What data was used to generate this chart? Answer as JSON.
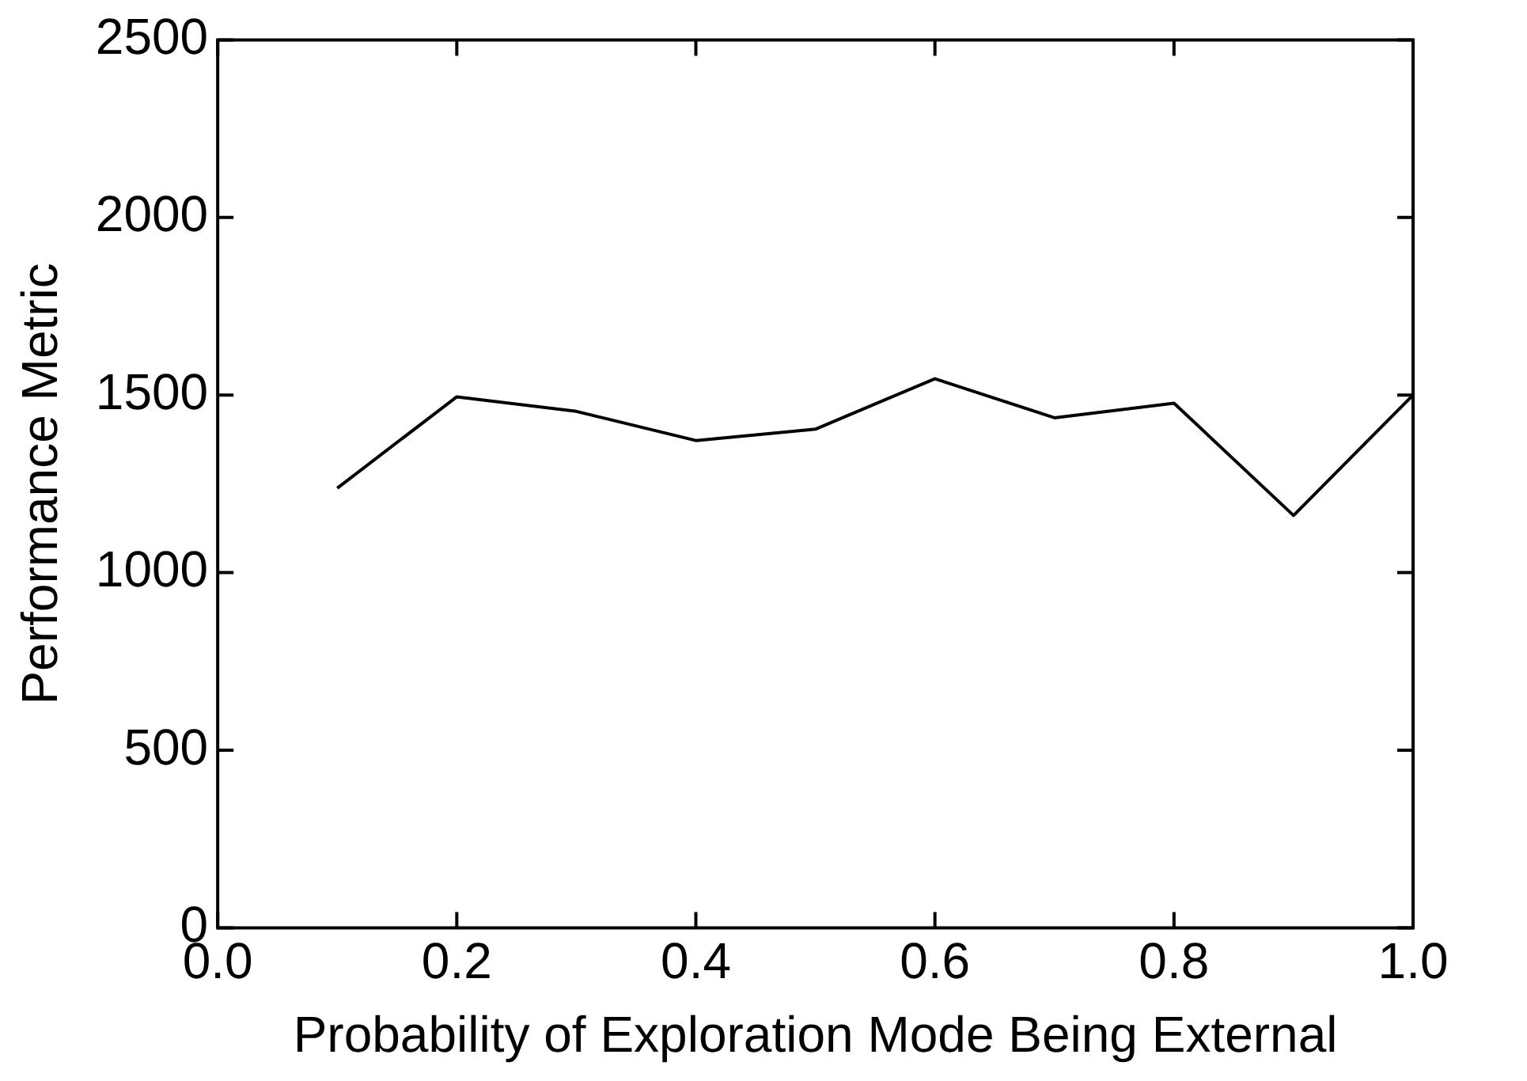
{
  "chart_data": {
    "type": "line",
    "xlabel": "Probability of Exploration Mode Being External",
    "ylabel": "Performance Metric",
    "x": [
      0.1,
      0.2,
      0.3,
      0.4,
      0.5,
      0.6,
      0.7,
      0.8,
      0.9,
      1.0
    ],
    "series": [
      {
        "color": "#000000",
        "values": [
          1238,
          1495,
          1454,
          1372,
          1404,
          1546,
          1436,
          1477,
          1161,
          1500
        ]
      }
    ],
    "xlim": [
      0,
      1
    ],
    "xticks": [
      {
        "value": 0,
        "label": "0.0"
      },
      {
        "value": 0.2,
        "label": "0.2"
      },
      {
        "value": 0.4,
        "label": "0.4"
      },
      {
        "value": 0.6,
        "label": "0.6"
      },
      {
        "value": 0.8,
        "label": "0.8"
      },
      {
        "value": 1,
        "label": "1.0"
      }
    ],
    "ylim": [
      0,
      2500
    ],
    "yticks": [
      0,
      500,
      1000,
      1500,
      2000,
      2500
    ],
    "grid": false,
    "legend": false,
    "marker": "none",
    "line_style": "solid"
  }
}
